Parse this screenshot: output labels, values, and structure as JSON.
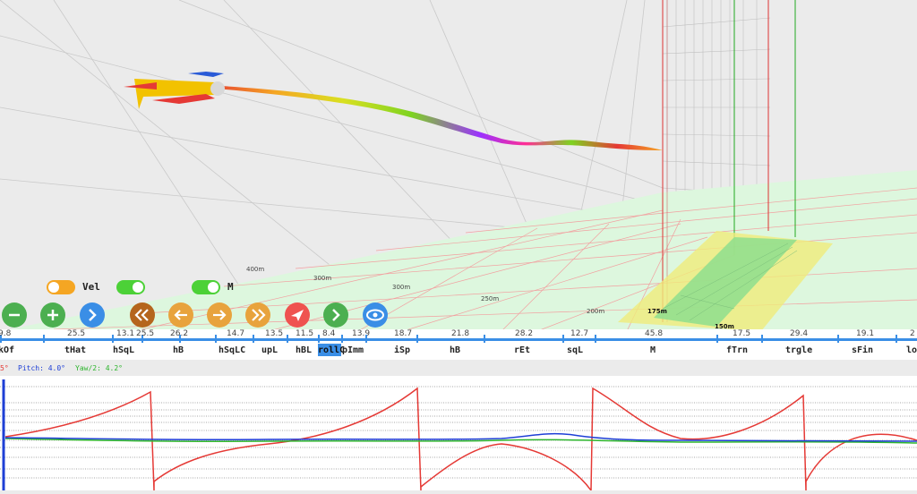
{
  "scene": {
    "distance_labels": [
      "400m",
      "300m",
      "300m",
      "250m",
      "200m",
      "175m",
      "150m"
    ]
  },
  "controls": {
    "toggles": [
      {
        "name": "vel",
        "label": "Vel",
        "state": "off",
        "color": "#f5a623"
      },
      {
        "name": "second",
        "label": "",
        "state": "on",
        "color": "#4cd137"
      },
      {
        "name": "m",
        "label": "M",
        "state": "on",
        "color": "#4cd137"
      }
    ],
    "buttons": [
      {
        "name": "zoom-out-button",
        "icon": "minus-icon",
        "color": "#4caf50"
      },
      {
        "name": "zoom-in-button",
        "icon": "plus-icon",
        "color": "#4caf50"
      },
      {
        "name": "forward-button",
        "icon": "chevron-right-icon",
        "color": "#3a8ee6"
      },
      {
        "name": "rewind-button",
        "icon": "double-chevron-left-icon",
        "color": "#b5651d"
      },
      {
        "name": "step-back-button",
        "icon": "arrow-left-icon",
        "color": "#e8a33d"
      },
      {
        "name": "step-forward-button",
        "icon": "arrow-right-icon",
        "color": "#e8a33d"
      },
      {
        "name": "fast-forward-button",
        "icon": "double-chevron-right-icon",
        "color": "#e8a33d"
      },
      {
        "name": "send-button",
        "icon": "paper-plane-icon",
        "color": "#ef5350"
      },
      {
        "name": "next-button",
        "icon": "chevron-right-icon",
        "color": "#4caf50"
      },
      {
        "name": "view-button",
        "icon": "eye-icon",
        "color": "#3a8ee6"
      }
    ]
  },
  "timeline": {
    "selected": "rollC",
    "segments": [
      {
        "value": "9.8",
        "name": "kOf"
      },
      {
        "value": "25.5",
        "name": "tHat"
      },
      {
        "value": "13.1",
        "name": "hSqL"
      },
      {
        "value": "25.5",
        "name": ""
      },
      {
        "value": "26.2",
        "name": "hB"
      },
      {
        "value": "14.7",
        "name": "hSqLC"
      },
      {
        "value": "13.5",
        "name": "upL"
      },
      {
        "value": "11.5",
        "name": "hBL"
      },
      {
        "value": "8.4",
        "name": "rollC"
      },
      {
        "value": "13.9",
        "name": "pImm"
      },
      {
        "value": "18.7",
        "name": "iSp"
      },
      {
        "value": "21.8",
        "name": "hB"
      },
      {
        "value": "28.2",
        "name": "rEt"
      },
      {
        "value": "12.7",
        "name": "sqL"
      },
      {
        "value": "45.8",
        "name": "M"
      },
      {
        "value": "17.5",
        "name": "fTrn"
      },
      {
        "value": "29.4",
        "name": "trgle"
      },
      {
        "value": "19.1",
        "name": "sFin"
      },
      {
        "value": "2",
        "name": "lo"
      }
    ]
  },
  "readout": {
    "roll": "5°",
    "pitch": "Pitch: 4.0°",
    "yaw": "Yaw/2: 4.2°"
  },
  "colors": {
    "roll": "#e53935",
    "pitch": "#1e3fd6",
    "yaw": "#2db52d",
    "accent": "#3a8ee6"
  }
}
